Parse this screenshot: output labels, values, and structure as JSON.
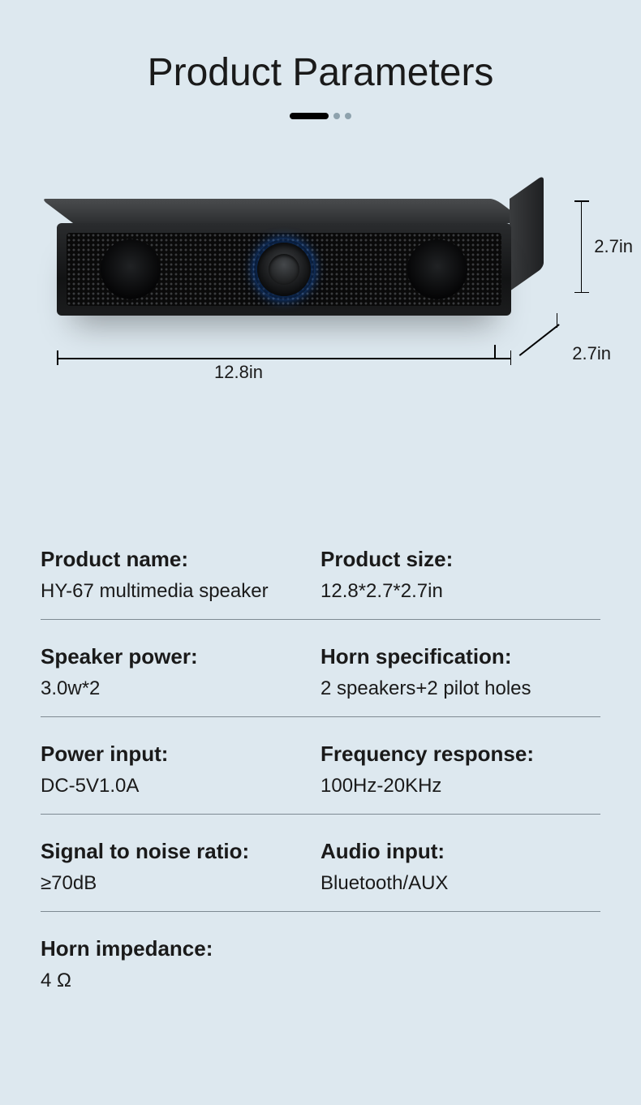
{
  "title": "Product Parameters",
  "colors": {
    "background": "#dde8ef",
    "text": "#1a1a1a",
    "underline_dot": "#8ea2ad",
    "divider": "#7e8a92",
    "knob_glow": "#1e78ff"
  },
  "typography": {
    "font_family": "Century Gothic / Futura",
    "title_fontsize": 48,
    "label_fontsize": 26,
    "value_fontsize": 24,
    "dimension_fontsize": 22
  },
  "dimensions": {
    "width_label": "12.8in",
    "height_label": "2.7in",
    "depth_label": "2.7in"
  },
  "specs": [
    [
      {
        "label": "Product name:",
        "value": "HY-67 multimedia speaker"
      },
      {
        "label": "Product size:",
        "value": "12.8*2.7*2.7in"
      }
    ],
    [
      {
        "label": "Speaker power:",
        "value": "3.0w*2"
      },
      {
        "label": "Horn specification:",
        "value": "2 speakers+2 pilot holes"
      }
    ],
    [
      {
        "label": "Power input:",
        "value": "DC-5V1.0A"
      },
      {
        "label": "Frequency response:",
        "value": "100Hz-20KHz"
      }
    ],
    [
      {
        "label": "Signal to noise ratio:",
        "value": "≥70dB"
      },
      {
        "label": "Audio input:",
        "value": "Bluetooth/AUX"
      }
    ],
    [
      {
        "label": "Horn impedance:",
        "value": "4 Ω"
      }
    ]
  ]
}
